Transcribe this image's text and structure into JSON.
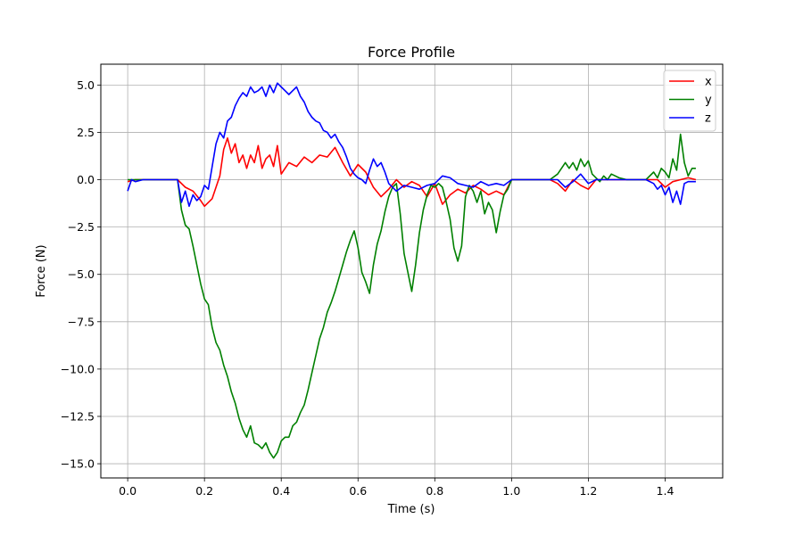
{
  "chart_data": {
    "type": "line",
    "title": "Force Profile",
    "xlabel": "Time (s)",
    "ylabel": "Force (N)",
    "xlim": [
      -0.07,
      1.55
    ],
    "ylim": [
      -15.75,
      6.1
    ],
    "xticks": [
      0.0,
      0.2,
      0.4,
      0.6,
      0.8,
      1.0,
      1.2,
      1.4
    ],
    "xtick_labels": [
      "0.0",
      "0.2",
      "0.4",
      "0.6",
      "0.8",
      "1.0",
      "1.2",
      "1.4"
    ],
    "yticks": [
      5.0,
      2.5,
      0.0,
      -2.5,
      -5.0,
      -7.5,
      -10.0,
      -12.5,
      -15.0
    ],
    "ytick_labels": [
      "5.0",
      "2.5",
      "0.0",
      "−2.5",
      "−5.0",
      "−7.5",
      "−10.0",
      "−12.5",
      "−15.0"
    ],
    "grid": true,
    "legend_position": "top-right",
    "series": [
      {
        "name": "x",
        "color": "#ff0000",
        "x": [
          0.0,
          0.02,
          0.05,
          0.08,
          0.1,
          0.13,
          0.15,
          0.17,
          0.19,
          0.2,
          0.22,
          0.24,
          0.25,
          0.26,
          0.27,
          0.28,
          0.29,
          0.3,
          0.31,
          0.32,
          0.33,
          0.34,
          0.35,
          0.36,
          0.37,
          0.38,
          0.39,
          0.4,
          0.42,
          0.44,
          0.46,
          0.48,
          0.5,
          0.52,
          0.54,
          0.56,
          0.58,
          0.6,
          0.62,
          0.64,
          0.66,
          0.68,
          0.7,
          0.72,
          0.74,
          0.76,
          0.78,
          0.8,
          0.82,
          0.84,
          0.86,
          0.88,
          0.9,
          0.92,
          0.94,
          0.96,
          0.98,
          1.0,
          1.05,
          1.1,
          1.12,
          1.14,
          1.16,
          1.18,
          1.2,
          1.22,
          1.25,
          1.3,
          1.35,
          1.38,
          1.4,
          1.42,
          1.44,
          1.46,
          1.48
        ],
        "y": [
          -0.1,
          0.0,
          0.0,
          0.0,
          0.0,
          0.0,
          -0.4,
          -0.6,
          -1.1,
          -1.4,
          -1.0,
          0.2,
          1.6,
          2.2,
          1.4,
          1.9,
          0.9,
          1.3,
          0.6,
          1.3,
          0.9,
          1.8,
          0.6,
          1.1,
          1.3,
          0.7,
          1.8,
          0.3,
          0.9,
          0.7,
          1.2,
          0.9,
          1.3,
          1.2,
          1.7,
          0.9,
          0.2,
          0.8,
          0.4,
          -0.4,
          -0.9,
          -0.5,
          0.0,
          -0.4,
          -0.1,
          -0.3,
          -0.9,
          -0.2,
          -1.3,
          -0.8,
          -0.5,
          -0.7,
          -0.3,
          -0.5,
          -0.8,
          -0.6,
          -0.8,
          0.0,
          0.0,
          0.0,
          -0.2,
          -0.6,
          0.0,
          -0.3,
          -0.5,
          0.0,
          0.0,
          0.0,
          0.0,
          0.0,
          -0.4,
          -0.1,
          0.0,
          0.1,
          0.0
        ]
      },
      {
        "name": "y",
        "color": "#008000",
        "x": [
          0.0,
          0.02,
          0.05,
          0.08,
          0.1,
          0.12,
          0.13,
          0.14,
          0.15,
          0.16,
          0.17,
          0.18,
          0.19,
          0.2,
          0.21,
          0.22,
          0.23,
          0.24,
          0.25,
          0.26,
          0.27,
          0.28,
          0.29,
          0.3,
          0.31,
          0.32,
          0.33,
          0.34,
          0.35,
          0.36,
          0.37,
          0.38,
          0.39,
          0.4,
          0.41,
          0.42,
          0.43,
          0.44,
          0.45,
          0.46,
          0.47,
          0.48,
          0.49,
          0.5,
          0.51,
          0.52,
          0.53,
          0.54,
          0.55,
          0.56,
          0.57,
          0.58,
          0.59,
          0.6,
          0.61,
          0.62,
          0.63,
          0.64,
          0.65,
          0.66,
          0.67,
          0.68,
          0.69,
          0.7,
          0.71,
          0.72,
          0.73,
          0.74,
          0.75,
          0.76,
          0.77,
          0.78,
          0.79,
          0.8,
          0.81,
          0.82,
          0.83,
          0.84,
          0.85,
          0.86,
          0.87,
          0.88,
          0.89,
          0.9,
          0.91,
          0.92,
          0.93,
          0.94,
          0.95,
          0.96,
          0.97,
          0.98,
          0.99,
          1.0,
          1.05,
          1.1,
          1.12,
          1.14,
          1.15,
          1.16,
          1.17,
          1.18,
          1.19,
          1.2,
          1.21,
          1.22,
          1.23,
          1.24,
          1.25,
          1.26,
          1.28,
          1.3,
          1.35,
          1.37,
          1.38,
          1.39,
          1.4,
          1.41,
          1.42,
          1.43,
          1.44,
          1.45,
          1.46,
          1.47,
          1.48
        ],
        "y": [
          0.0,
          0.0,
          0.0,
          0.0,
          0.0,
          0.0,
          0.0,
          -1.6,
          -2.4,
          -2.6,
          -3.5,
          -4.5,
          -5.5,
          -6.3,
          -6.6,
          -7.8,
          -8.6,
          -9.0,
          -9.8,
          -10.4,
          -11.2,
          -11.8,
          -12.6,
          -13.2,
          -13.6,
          -13.0,
          -13.9,
          -14.0,
          -14.2,
          -13.9,
          -14.4,
          -14.7,
          -14.4,
          -13.8,
          -13.6,
          -13.6,
          -13.0,
          -12.8,
          -12.3,
          -11.9,
          -11.1,
          -10.2,
          -9.3,
          -8.4,
          -7.8,
          -7.0,
          -6.5,
          -5.9,
          -5.2,
          -4.5,
          -3.8,
          -3.2,
          -2.7,
          -3.6,
          -4.9,
          -5.4,
          -6.0,
          -4.5,
          -3.4,
          -2.7,
          -1.7,
          -0.9,
          -0.4,
          -0.2,
          -1.8,
          -3.9,
          -4.9,
          -5.9,
          -4.5,
          -2.8,
          -1.6,
          -0.8,
          -0.3,
          -0.4,
          -0.2,
          -0.4,
          -1.2,
          -2.1,
          -3.6,
          -4.3,
          -3.5,
          -0.9,
          -0.3,
          -0.6,
          -1.2,
          -0.6,
          -1.8,
          -1.2,
          -1.6,
          -2.8,
          -1.7,
          -0.8,
          -0.5,
          0.0,
          0.0,
          0.0,
          0.3,
          0.9,
          0.6,
          0.9,
          0.5,
          1.1,
          0.7,
          1.0,
          0.3,
          0.1,
          -0.1,
          0.2,
          0.0,
          0.3,
          0.1,
          0.0,
          0.0,
          0.4,
          0.1,
          0.6,
          0.4,
          0.1,
          1.1,
          0.5,
          2.4,
          0.9,
          0.2,
          0.6,
          0.6
        ]
      },
      {
        "name": "z",
        "color": "#0000ff",
        "x": [
          0.0,
          0.01,
          0.02,
          0.04,
          0.06,
          0.08,
          0.1,
          0.12,
          0.13,
          0.14,
          0.15,
          0.16,
          0.17,
          0.18,
          0.19,
          0.2,
          0.21,
          0.22,
          0.23,
          0.24,
          0.25,
          0.26,
          0.27,
          0.28,
          0.29,
          0.3,
          0.31,
          0.32,
          0.33,
          0.34,
          0.35,
          0.36,
          0.37,
          0.38,
          0.39,
          0.4,
          0.41,
          0.42,
          0.43,
          0.44,
          0.45,
          0.46,
          0.47,
          0.48,
          0.49,
          0.5,
          0.51,
          0.52,
          0.53,
          0.54,
          0.55,
          0.56,
          0.57,
          0.58,
          0.59,
          0.6,
          0.61,
          0.62,
          0.63,
          0.64,
          0.65,
          0.66,
          0.67,
          0.68,
          0.7,
          0.72,
          0.74,
          0.76,
          0.78,
          0.8,
          0.82,
          0.84,
          0.86,
          0.88,
          0.9,
          0.92,
          0.94,
          0.96,
          0.98,
          1.0,
          1.05,
          1.1,
          1.12,
          1.14,
          1.16,
          1.18,
          1.2,
          1.22,
          1.25,
          1.3,
          1.35,
          1.37,
          1.38,
          1.39,
          1.4,
          1.41,
          1.42,
          1.43,
          1.44,
          1.45,
          1.46,
          1.48
        ],
        "y": [
          -0.6,
          0.0,
          -0.1,
          0.0,
          0.0,
          0.0,
          0.0,
          0.0,
          0.0,
          -1.2,
          -0.6,
          -1.4,
          -0.8,
          -1.1,
          -0.9,
          -0.3,
          -0.5,
          0.7,
          1.9,
          2.5,
          2.2,
          3.1,
          3.3,
          3.9,
          4.3,
          4.6,
          4.4,
          4.9,
          4.6,
          4.7,
          4.9,
          4.4,
          5.0,
          4.6,
          5.1,
          4.9,
          4.7,
          4.5,
          4.7,
          4.9,
          4.4,
          4.1,
          3.6,
          3.3,
          3.1,
          3.0,
          2.6,
          2.5,
          2.2,
          2.4,
          2.0,
          1.7,
          1.2,
          0.6,
          0.3,
          0.1,
          0.0,
          -0.2,
          0.5,
          1.1,
          0.7,
          0.9,
          0.4,
          -0.2,
          -0.6,
          -0.3,
          -0.4,
          -0.5,
          -0.3,
          -0.2,
          0.2,
          0.1,
          -0.2,
          -0.3,
          -0.4,
          -0.1,
          -0.3,
          -0.2,
          -0.3,
          0.0,
          0.0,
          0.0,
          0.0,
          -0.4,
          -0.1,
          0.3,
          -0.2,
          0.0,
          0.0,
          0.0,
          0.0,
          -0.2,
          -0.5,
          -0.3,
          -0.8,
          -0.4,
          -1.2,
          -0.6,
          -1.3,
          -0.2,
          -0.1,
          -0.1
        ]
      }
    ]
  }
}
